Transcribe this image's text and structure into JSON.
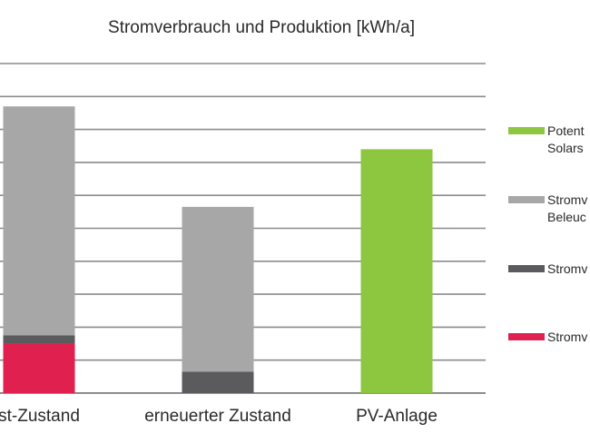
{
  "chart_data": {
    "type": "bar",
    "stacked": true,
    "title": "Stromverbrauch und Produktion [kWh/a]",
    "categories": [
      "st-Zustand",
      "erneuerter Zustand",
      "PV-Anlage"
    ],
    "ylim": [
      0,
      10
    ],
    "grid": true,
    "legend_position": "right",
    "series": [
      {
        "name": "",
        "color": "#e0204e",
        "values": [
          1.5,
          0,
          0
        ]
      },
      {
        "name": "",
        "color": "#5b5b5e",
        "values": [
          0.25,
          0.65,
          0
        ]
      },
      {
        "name": "",
        "color": "#a7a7a7",
        "values": [
          6.95,
          5.0,
          0
        ]
      },
      {
        "name": "",
        "color": "#8dc63f",
        "values": [
          0,
          0,
          7.4
        ]
      }
    ]
  },
  "legend": [
    {
      "lines": [
        "Potent",
        "Solars"
      ],
      "color": "#8dc63f",
      "icon": "green-swatch"
    },
    {
      "lines": [
        "Stromv",
        "Beleuc"
      ],
      "color": "#a7a7a7",
      "icon": "light-gray-swatch"
    },
    {
      "lines": [
        "Stromv"
      ],
      "color": "#5b5b5e",
      "icon": "dark-gray-swatch"
    },
    {
      "lines": [
        "Stromv"
      ],
      "color": "#e0204e",
      "icon": "red-swatch"
    }
  ],
  "colors": {
    "grid": "#8c8c8c",
    "text": "#2a2a2a"
  }
}
